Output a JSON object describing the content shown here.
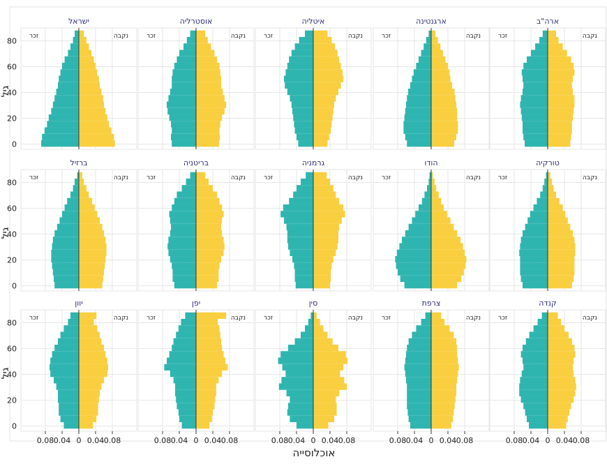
{
  "figure": {
    "xlabel": "אוכלוסייה",
    "ylabel": "גיל",
    "legend_left": "זכר",
    "legend_right": "נקבה",
    "colors": {
      "male": "#2fb5b0",
      "female": "#f9cf3f",
      "strip": "#2e2e7a",
      "grid": "#e6e6e6",
      "axis": "#333333"
    },
    "x_ticks": [
      "0.08",
      "0.04",
      "0",
      "0.04",
      "0.08"
    ],
    "x_tick_values": [
      -0.08,
      -0.04,
      0,
      0.04,
      0.08
    ],
    "y_ticks": [
      "0",
      "20",
      "40",
      "60",
      "80"
    ],
    "y_tick_values": [
      0,
      20,
      40,
      60,
      80
    ]
  },
  "chart_data": {
    "type": "bar",
    "orientation": "horizontal",
    "layout": "population-pyramid small multiples, 3 rows x 5 columns",
    "age_groups": [
      0,
      5,
      10,
      15,
      20,
      25,
      30,
      35,
      40,
      45,
      50,
      55,
      60,
      65,
      70,
      75,
      80,
      85
    ],
    "xlim": [
      -0.1,
      0.1
    ],
    "ylim": [
      -4,
      90
    ],
    "male_side": "left",
    "female_side": "right",
    "panels": [
      {
        "country": "ארה\"ב",
        "male": [
          0.055,
          0.058,
          0.06,
          0.06,
          0.062,
          0.064,
          0.066,
          0.064,
          0.06,
          0.058,
          0.06,
          0.062,
          0.058,
          0.05,
          0.04,
          0.03,
          0.02,
          0.012
        ],
        "female": [
          0.054,
          0.056,
          0.058,
          0.058,
          0.06,
          0.062,
          0.064,
          0.064,
          0.06,
          0.058,
          0.06,
          0.064,
          0.062,
          0.056,
          0.046,
          0.036,
          0.026,
          0.02
        ]
      },
      {
        "country": "ארגנטינה",
        "male": [
          0.058,
          0.062,
          0.066,
          0.066,
          0.064,
          0.062,
          0.06,
          0.058,
          0.055,
          0.05,
          0.046,
          0.042,
          0.036,
          0.03,
          0.024,
          0.018,
          0.012,
          0.006
        ],
        "female": [
          0.055,
          0.06,
          0.064,
          0.064,
          0.062,
          0.062,
          0.06,
          0.058,
          0.056,
          0.05,
          0.046,
          0.044,
          0.04,
          0.034,
          0.028,
          0.022,
          0.016,
          0.01
        ]
      },
      {
        "country": "איטליה",
        "male": [
          0.036,
          0.04,
          0.044,
          0.046,
          0.048,
          0.05,
          0.052,
          0.056,
          0.062,
          0.068,
          0.07,
          0.066,
          0.062,
          0.058,
          0.052,
          0.044,
          0.034,
          0.02
        ],
        "female": [
          0.034,
          0.038,
          0.042,
          0.044,
          0.046,
          0.048,
          0.05,
          0.054,
          0.06,
          0.066,
          0.072,
          0.07,
          0.066,
          0.062,
          0.058,
          0.052,
          0.044,
          0.034
        ]
      },
      {
        "country": "אוסטרליה",
        "male": [
          0.058,
          0.06,
          0.058,
          0.06,
          0.064,
          0.068,
          0.07,
          0.066,
          0.062,
          0.058,
          0.058,
          0.056,
          0.052,
          0.046,
          0.04,
          0.03,
          0.022,
          0.014
        ],
        "female": [
          0.055,
          0.057,
          0.056,
          0.058,
          0.062,
          0.068,
          0.072,
          0.068,
          0.064,
          0.06,
          0.06,
          0.058,
          0.056,
          0.05,
          0.044,
          0.036,
          0.028,
          0.022
        ]
      },
      {
        "country": "ישראל",
        "male": [
          0.09,
          0.088,
          0.082,
          0.076,
          0.072,
          0.066,
          0.062,
          0.058,
          0.054,
          0.05,
          0.048,
          0.044,
          0.04,
          0.034,
          0.026,
          0.02,
          0.014,
          0.01
        ],
        "female": [
          0.086,
          0.084,
          0.078,
          0.072,
          0.068,
          0.064,
          0.06,
          0.058,
          0.054,
          0.05,
          0.048,
          0.044,
          0.04,
          0.036,
          0.03,
          0.024,
          0.018,
          0.012
        ]
      },
      {
        "country": "טורקיה",
        "male": [
          0.06,
          0.064,
          0.066,
          0.066,
          0.066,
          0.068,
          0.066,
          0.064,
          0.06,
          0.054,
          0.048,
          0.042,
          0.034,
          0.026,
          0.018,
          0.012,
          0.008,
          0.004
        ],
        "female": [
          0.058,
          0.062,
          0.064,
          0.064,
          0.064,
          0.066,
          0.066,
          0.064,
          0.06,
          0.054,
          0.048,
          0.042,
          0.036,
          0.028,
          0.02,
          0.014,
          0.01,
          0.006
        ]
      },
      {
        "country": "הודו",
        "male": [
          0.064,
          0.074,
          0.08,
          0.084,
          0.086,
          0.082,
          0.076,
          0.07,
          0.062,
          0.054,
          0.046,
          0.038,
          0.03,
          0.022,
          0.016,
          0.01,
          0.006,
          0.004
        ],
        "female": [
          0.062,
          0.072,
          0.078,
          0.082,
          0.084,
          0.08,
          0.076,
          0.07,
          0.062,
          0.054,
          0.046,
          0.038,
          0.03,
          0.024,
          0.018,
          0.012,
          0.008,
          0.004
        ]
      },
      {
        "country": "גרמניה",
        "male": [
          0.042,
          0.044,
          0.044,
          0.046,
          0.05,
          0.056,
          0.06,
          0.062,
          0.062,
          0.064,
          0.07,
          0.078,
          0.072,
          0.058,
          0.048,
          0.04,
          0.03,
          0.018
        ],
        "female": [
          0.04,
          0.042,
          0.042,
          0.044,
          0.048,
          0.054,
          0.058,
          0.06,
          0.06,
          0.062,
          0.068,
          0.076,
          0.072,
          0.062,
          0.054,
          0.048,
          0.04,
          0.032
        ]
      },
      {
        "country": "בריטניה",
        "male": [
          0.052,
          0.056,
          0.056,
          0.058,
          0.062,
          0.066,
          0.068,
          0.066,
          0.062,
          0.06,
          0.062,
          0.064,
          0.058,
          0.052,
          0.046,
          0.034,
          0.024,
          0.014
        ],
        "female": [
          0.05,
          0.054,
          0.054,
          0.056,
          0.06,
          0.066,
          0.068,
          0.066,
          0.062,
          0.06,
          0.062,
          0.066,
          0.062,
          0.056,
          0.05,
          0.04,
          0.03,
          0.022
        ]
      },
      {
        "country": "ברזיל",
        "male": [
          0.058,
          0.06,
          0.062,
          0.064,
          0.066,
          0.066,
          0.064,
          0.062,
          0.058,
          0.052,
          0.046,
          0.04,
          0.034,
          0.028,
          0.02,
          0.014,
          0.01,
          0.004
        ],
        "female": [
          0.056,
          0.058,
          0.06,
          0.062,
          0.064,
          0.066,
          0.066,
          0.064,
          0.06,
          0.056,
          0.05,
          0.044,
          0.038,
          0.032,
          0.024,
          0.018,
          0.012,
          0.008
        ]
      },
      {
        "country": "קנדה",
        "male": [
          0.045,
          0.05,
          0.054,
          0.058,
          0.064,
          0.068,
          0.068,
          0.066,
          0.062,
          0.058,
          0.06,
          0.064,
          0.06,
          0.052,
          0.044,
          0.034,
          0.024,
          0.014
        ],
        "female": [
          0.044,
          0.048,
          0.052,
          0.056,
          0.062,
          0.066,
          0.068,
          0.066,
          0.062,
          0.06,
          0.062,
          0.066,
          0.064,
          0.058,
          0.05,
          0.04,
          0.032,
          0.024
        ]
      },
      {
        "country": "צרפת",
        "male": [
          0.05,
          0.054,
          0.056,
          0.058,
          0.058,
          0.058,
          0.058,
          0.06,
          0.062,
          0.064,
          0.062,
          0.06,
          0.058,
          0.054,
          0.046,
          0.036,
          0.024,
          0.014
        ],
        "female": [
          0.048,
          0.052,
          0.054,
          0.056,
          0.058,
          0.06,
          0.06,
          0.062,
          0.064,
          0.066,
          0.064,
          0.062,
          0.062,
          0.06,
          0.054,
          0.044,
          0.032,
          0.024
        ]
      },
      {
        "country": "סין",
        "male": [
          0.04,
          0.056,
          0.062,
          0.06,
          0.056,
          0.064,
          0.082,
          0.076,
          0.066,
          0.074,
          0.084,
          0.078,
          0.06,
          0.044,
          0.03,
          0.02,
          0.012,
          0.006
        ],
        "female": [
          0.036,
          0.05,
          0.056,
          0.056,
          0.054,
          0.062,
          0.08,
          0.074,
          0.064,
          0.072,
          0.082,
          0.078,
          0.06,
          0.046,
          0.034,
          0.024,
          0.016,
          0.008
        ]
      },
      {
        "country": "יפן",
        "male": [
          0.034,
          0.04,
          0.042,
          0.046,
          0.048,
          0.05,
          0.05,
          0.054,
          0.062,
          0.076,
          0.07,
          0.064,
          0.058,
          0.054,
          0.048,
          0.042,
          0.036,
          0.026
        ],
        "female": [
          0.032,
          0.038,
          0.04,
          0.044,
          0.046,
          0.048,
          0.048,
          0.054,
          0.062,
          0.076,
          0.07,
          0.066,
          0.062,
          0.06,
          0.058,
          0.056,
          0.052,
          0.072
        ]
      },
      {
        "country": "יוון",
        "male": [
          0.036,
          0.044,
          0.048,
          0.048,
          0.05,
          0.05,
          0.054,
          0.06,
          0.068,
          0.07,
          0.068,
          0.064,
          0.058,
          0.05,
          0.044,
          0.036,
          0.026,
          0.02
        ],
        "female": [
          0.034,
          0.042,
          0.046,
          0.046,
          0.048,
          0.05,
          0.054,
          0.06,
          0.068,
          0.07,
          0.068,
          0.064,
          0.06,
          0.054,
          0.05,
          0.044,
          0.036,
          0.042
        ]
      }
    ]
  }
}
